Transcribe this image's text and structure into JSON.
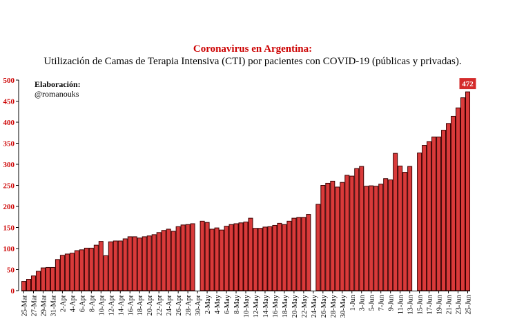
{
  "chart_data": {
    "type": "bar",
    "title": "Coronavirus en Argentina:",
    "subtitle": "Utilización de Camas de Terapia Intensiva (CTI) por pacientes con COVID-19 (públicas y privadas).",
    "credit_label": "Elaboración:",
    "credit_handle": "@romanouks",
    "xlabel": "",
    "ylabel": "",
    "ylim": [
      0,
      500
    ],
    "yticks": [
      0,
      50,
      100,
      150,
      200,
      250,
      300,
      350,
      400,
      450,
      500
    ],
    "grid": false,
    "bar_color": "#d93a3a",
    "bar_edge_color": "#3a0000",
    "tick_color": "#cc0000",
    "peak_label": "472",
    "peak_label_bg": "#d42b2b",
    "categories": [
      "25-Mar",
      "26-Mar",
      "27-Mar",
      "28-Mar",
      "29-Mar",
      "30-Mar",
      "31-Mar",
      "1-Apr",
      "2-Apr",
      "3-Apr",
      "4-Apr",
      "5-Apr",
      "6-Apr",
      "7-Apr",
      "8-Apr",
      "9-Apr",
      "10-Apr",
      "11-Apr",
      "12-Apr",
      "13-Apr",
      "14-Apr",
      "15-Apr",
      "16-Apr",
      "17-Apr",
      "18-Apr",
      "19-Apr",
      "20-Apr",
      "21-Apr",
      "22-Apr",
      "23-Apr",
      "24-Apr",
      "25-Apr",
      "26-Apr",
      "27-Apr",
      "28-Apr",
      "29-Apr",
      "30-Apr",
      "1-May",
      "2-May",
      "3-May",
      "4-May",
      "5-May",
      "6-May",
      "7-May",
      "8-May",
      "9-May",
      "10-May",
      "11-May",
      "12-May",
      "13-May",
      "14-May",
      "15-May",
      "16-May",
      "17-May",
      "18-May",
      "19-May",
      "20-May",
      "21-May",
      "22-May",
      "23-May",
      "24-May",
      "25-May",
      "26-May",
      "27-May",
      "28-May",
      "29-May",
      "30-May",
      "31-May",
      "1-Jun",
      "2-Jun",
      "3-Jun",
      "4-Jun",
      "5-Jun",
      "6-Jun",
      "7-Jun",
      "8-Jun",
      "9-Jun",
      "10-Jun",
      "11-Jun",
      "12-Jun",
      "13-Jun",
      "14-Jun",
      "15-Jun",
      "16-Jun",
      "17-Jun",
      "18-Jun",
      "19-Jun",
      "20-Jun",
      "21-Jun",
      "22-Jun",
      "23-Jun",
      "24-Jun",
      "25-Jun"
    ],
    "tick_labels": [
      "25-Mar",
      "27-Mar",
      "29-Mar",
      "31-Mar",
      "2-Apr",
      "4-Apr",
      "6-Apr",
      "8-Apr",
      "10-Apr",
      "12-Apr",
      "14-Apr",
      "16-Apr",
      "18-Apr",
      "20-Apr",
      "22-Apr",
      "24-Apr",
      "26-Apr",
      "28-Apr",
      "30-Apr",
      "2-May",
      "4-May",
      "6-May",
      "8-May",
      "10-May",
      "12-May",
      "14-May",
      "16-May",
      "18-May",
      "20-May",
      "22-May",
      "24-May",
      "26-May",
      "28-May",
      "30-May",
      "1-Jun",
      "3-Jun",
      "5-Jun",
      "7-Jun",
      "9-Jun",
      "11-Jun",
      "13-Jun",
      "15-Jun",
      "17-Jun",
      "19-Jun",
      "21-Jun",
      "23-Jun",
      "25-Jun"
    ],
    "values": [
      22,
      27,
      35,
      46,
      54,
      55,
      55,
      74,
      84,
      87,
      89,
      95,
      97,
      101,
      101,
      108,
      117,
      83,
      116,
      118,
      118,
      123,
      128,
      128,
      125,
      128,
      130,
      133,
      138,
      143,
      146,
      141,
      152,
      156,
      157,
      159,
      null,
      165,
      162,
      146,
      149,
      144,
      153,
      157,
      159,
      161,
      163,
      172,
      148,
      148,
      151,
      152,
      155,
      160,
      157,
      165,
      172,
      174,
      174,
      181,
      null,
      205,
      250,
      255,
      260,
      246,
      257,
      274,
      272,
      290,
      295,
      248,
      249,
      248,
      253,
      266,
      263,
      326,
      296,
      281,
      295,
      null,
      327,
      345,
      354,
      365,
      365,
      381,
      397,
      414,
      434,
      458,
      472
    ]
  }
}
